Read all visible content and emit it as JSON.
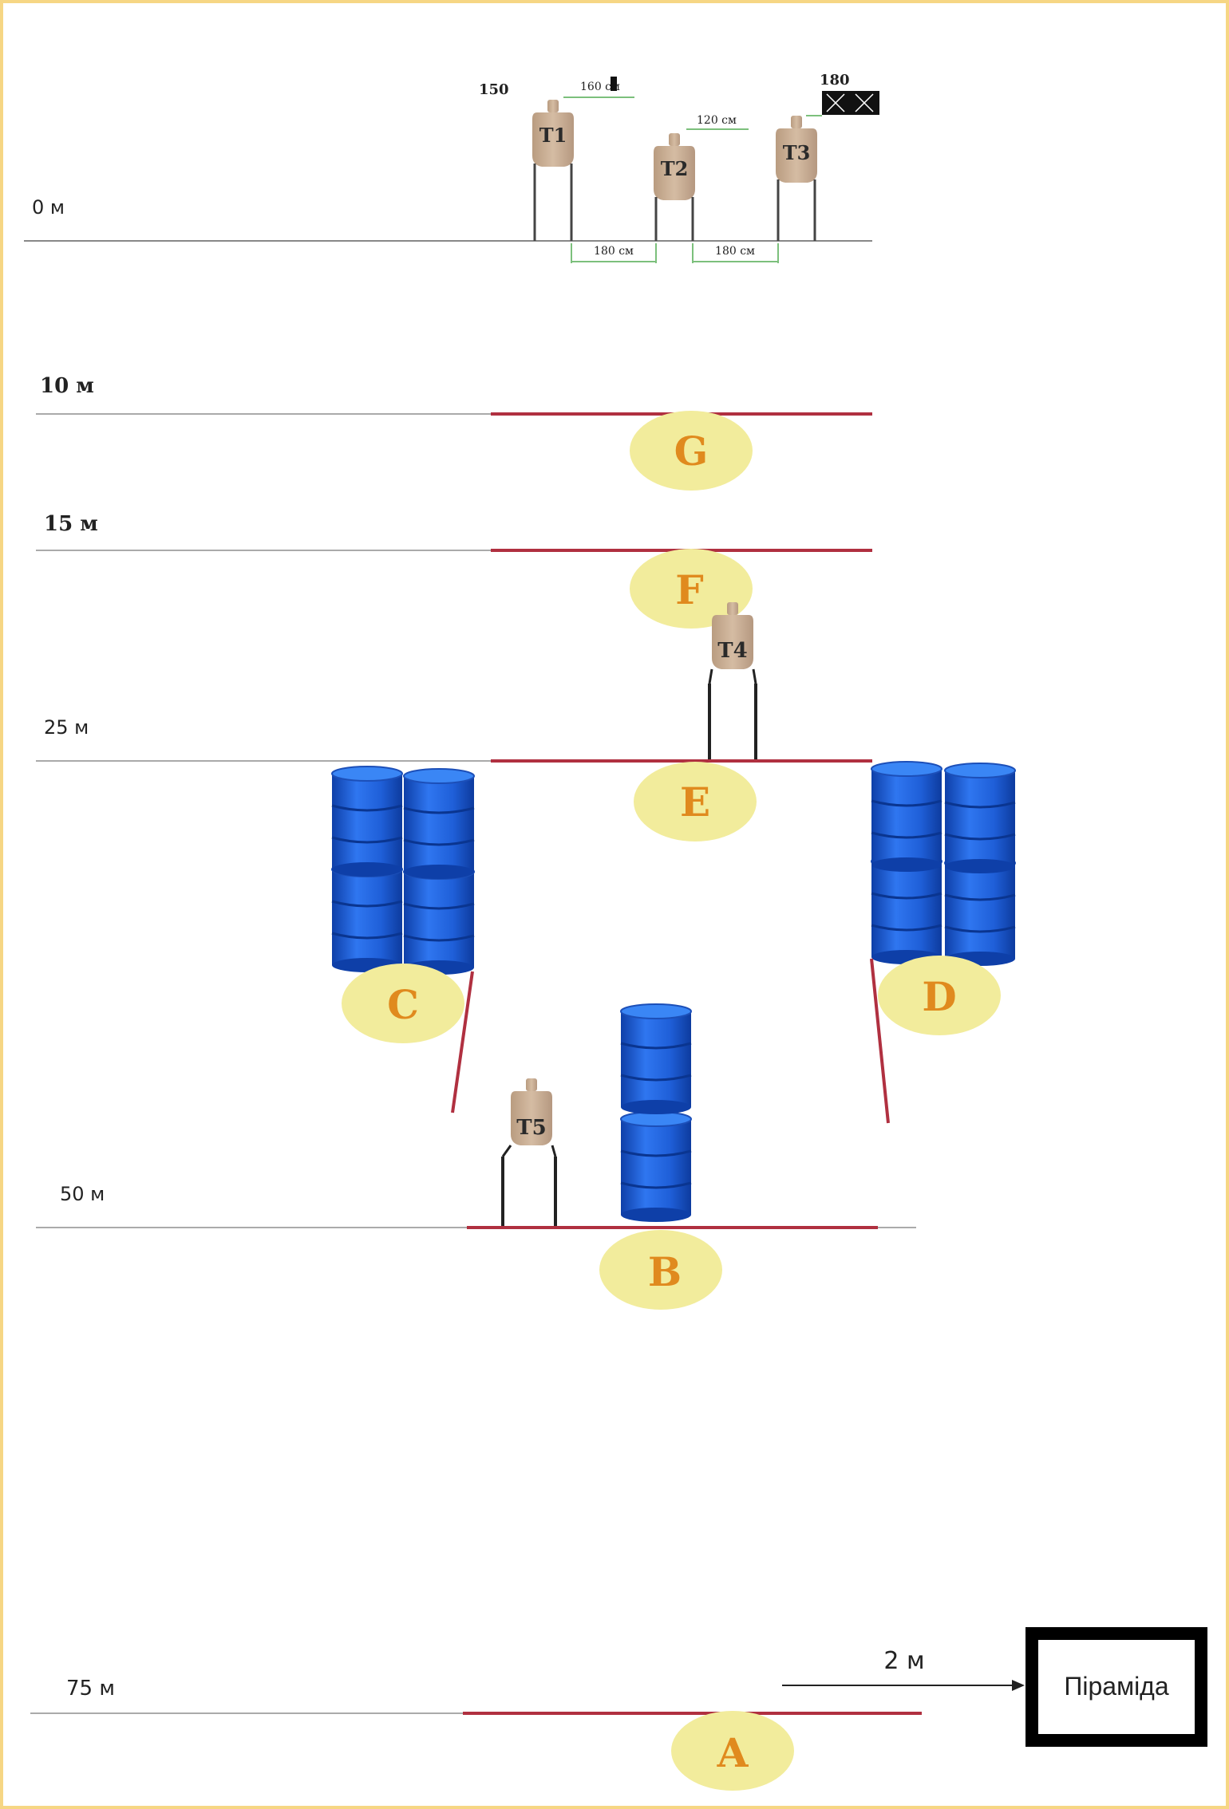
{
  "distances": {
    "d0": "0 м",
    "d10": "10 м",
    "d15": "15 м",
    "d25": "25 м",
    "d50": "50 м",
    "d75": "75 м"
  },
  "zones": {
    "A": "A",
    "B": "B",
    "C": "C",
    "D": "D",
    "E": "E",
    "F": "F",
    "G": "G"
  },
  "targets": {
    "T1": "T1",
    "T2": "T2",
    "T3": "T3",
    "T4": "T4",
    "T5": "T5"
  },
  "heights": {
    "t1": "150",
    "t3": "180",
    "t1_dim": "160 см",
    "t2_dim": "120 см"
  },
  "spacings": {
    "s1": "180 см",
    "s2": "180 см"
  },
  "pyramid": {
    "label": "Піраміда",
    "distance": "2 м"
  },
  "colors": {
    "frame": "#f6d684",
    "fire_line": "#b03040",
    "zone_fill": "#f2ec9c",
    "zone_text": "#e08a1e",
    "barrel": "#1e5fd6",
    "target": "#c9ae94"
  }
}
